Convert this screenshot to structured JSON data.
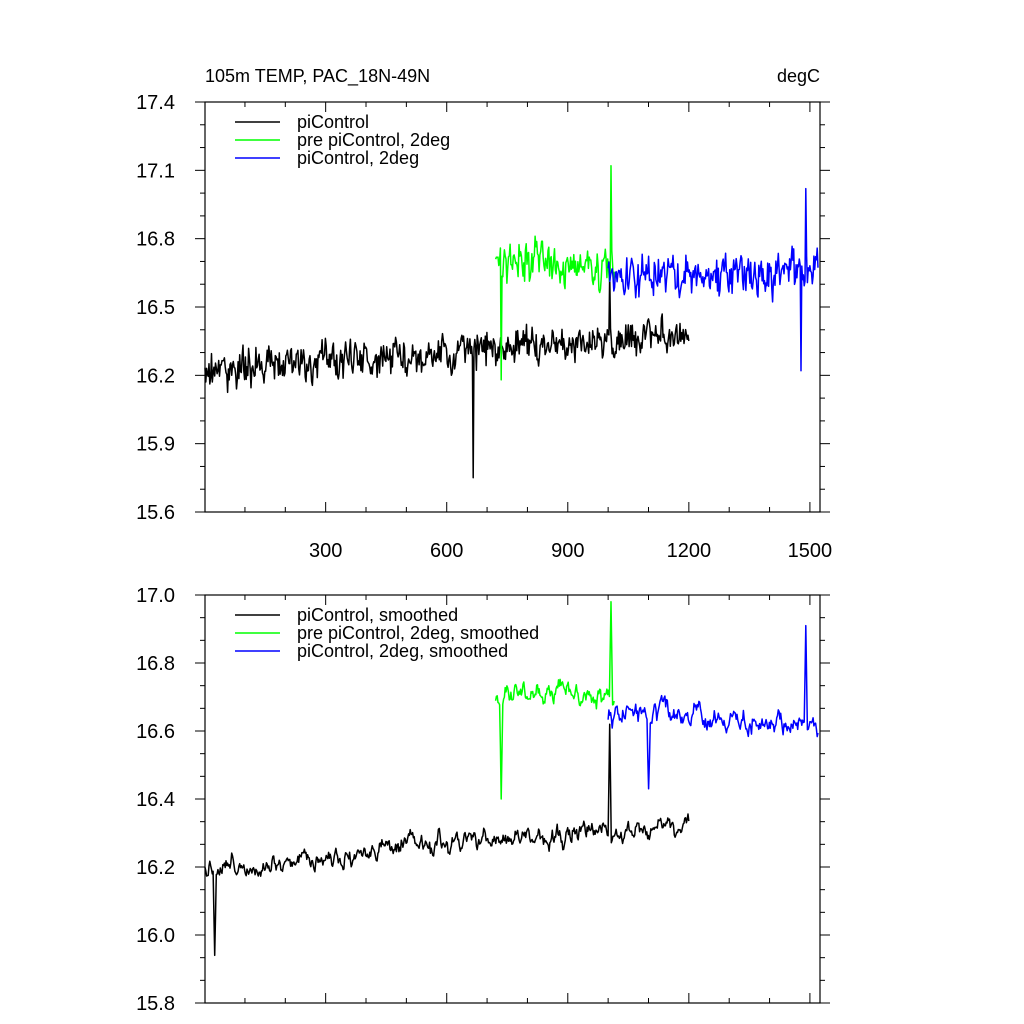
{
  "chart_data": [
    {
      "type": "line",
      "title": "105m TEMP, PAC_18N-49N",
      "units": "degC",
      "xlabel": "",
      "ylabel": "",
      "xlim": [
        1,
        1525
      ],
      "ylim": [
        15.6,
        17.4
      ],
      "xticks": [
        300,
        600,
        900,
        1200,
        1500
      ],
      "xtick_labels": [
        "300",
        "600",
        "900",
        "1200",
        "1500"
      ],
      "yticks": [
        15.6,
        15.9,
        16.2,
        16.5,
        16.8,
        17.1,
        17.4
      ],
      "ytick_labels": [
        "15.6",
        "15.9",
        "16.2",
        "16.5",
        "16.8",
        "17.1",
        "17.4"
      ],
      "legend_position": "top-left",
      "series": [
        {
          "name": "piControl",
          "color": "#000000",
          "x_start": 1,
          "x_end": 1200,
          "points": 600,
          "approx_mean_start": 16.22,
          "approx_mean_end": 16.38,
          "noise_amplitude": 0.12,
          "notable_values": {
            "min": 15.75,
            "min_at": 665,
            "max": 16.65,
            "max_at": 1003
          }
        },
        {
          "name": "pre piControl, 2deg",
          "color": "#00ff00",
          "x_start": 721,
          "x_end": 1015,
          "points": 148,
          "approx_mean_start": 16.72,
          "approx_mean_end": 16.66,
          "noise_amplitude": 0.12,
          "notable_values": {
            "min": 16.18,
            "min_at": 735,
            "max": 17.12,
            "max_at": 1007
          }
        },
        {
          "name": "piControl, 2deg",
          "color": "#0000ff",
          "x_start": 1000,
          "x_end": 1520,
          "points": 260,
          "approx_mean_start": 16.62,
          "approx_mean_end": 16.66,
          "noise_amplitude": 0.13,
          "notable_values": {
            "min": 16.22,
            "min_at": 1478,
            "max": 17.02,
            "max_at": 1490
          }
        }
      ]
    },
    {
      "type": "line",
      "title": "",
      "xlabel": "",
      "ylabel": "",
      "xlim": [
        1,
        1525
      ],
      "ylim": [
        15.8,
        17.0
      ],
      "xticks": [
        300,
        600,
        900,
        1200,
        1500
      ],
      "xtick_labels": [],
      "yticks": [
        15.8,
        16.0,
        16.2,
        16.4,
        16.6,
        16.8,
        17.0
      ],
      "ytick_labels": [
        "15.8",
        "16.0",
        "16.2",
        "16.4",
        "16.6",
        "16.8",
        "17.0"
      ],
      "legend_position": "top-left",
      "series": [
        {
          "name": "piControl, smoothed",
          "color": "#000000",
          "x_start": 1,
          "x_end": 1200,
          "points": 600,
          "approx_mean_start": 16.2,
          "approx_mean_end": 16.33,
          "noise_amplitude": 0.07,
          "notable_values": {
            "min": 15.94,
            "min_at": 25,
            "max": 16.62,
            "max_at": 1003
          }
        },
        {
          "name": "pre piControl, 2deg, smoothed",
          "color": "#00ff00",
          "x_start": 721,
          "x_end": 1015,
          "points": 148,
          "approx_mean_start": 16.72,
          "approx_mean_end": 16.7,
          "noise_amplitude": 0.07,
          "notable_values": {
            "min": 16.4,
            "min_at": 735,
            "max": 16.98,
            "max_at": 1007
          }
        },
        {
          "name": "piControl, 2deg, smoothed",
          "color": "#0000ff",
          "x_start": 1000,
          "x_end": 1520,
          "points": 260,
          "approx_mean_start": 16.65,
          "approx_mean_end": 16.62,
          "noise_amplitude": 0.08,
          "notable_values": {
            "min": 16.43,
            "min_at": 1100,
            "max": 16.91,
            "max_at": 1490
          }
        }
      ]
    }
  ]
}
